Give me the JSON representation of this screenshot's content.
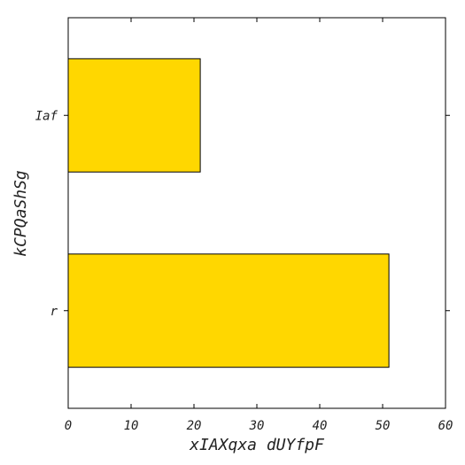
{
  "chart_data": {
    "type": "bar",
    "orientation": "horizontal",
    "categories": [
      "r",
      "Iaf"
    ],
    "values": [
      51,
      21
    ],
    "title": "",
    "xlabel": "xIAXqxa dUYfpF",
    "ylabel": "kCPQaShSg",
    "xlim": [
      0,
      60
    ],
    "xticks": [
      0,
      10,
      20,
      30,
      40,
      50,
      60
    ],
    "grid": false,
    "legend": "none",
    "bar_color": "#FFD700",
    "edge_color": "#000000"
  }
}
